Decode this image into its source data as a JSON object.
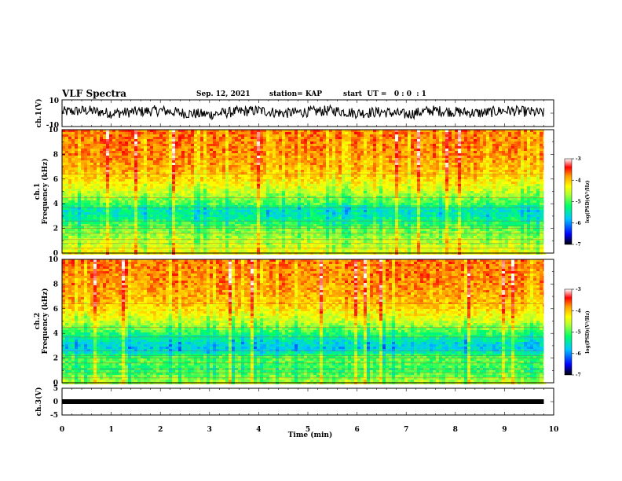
{
  "header": {
    "title": "VLF Spectra",
    "date": "Sep. 12, 2021",
    "station": "station= KAP",
    "start_ut": "start  UT =   0 : 0  : 1"
  },
  "colors": {
    "scale": [
      "#000000",
      "#0000ff",
      "#00c8ff",
      "#00ff66",
      "#aaff33",
      "#ffff00",
      "#ff9900",
      "#ff0000",
      "#ffffff"
    ]
  },
  "chart_data": [
    {
      "type": "line",
      "panel": "ch1-waveform",
      "ylabel": "ch.1(V)",
      "ylim": [
        -10,
        10
      ],
      "yticks": [
        "10",
        "-10"
      ],
      "xlim": [
        0,
        10
      ],
      "description_values": {
        "mean": 1,
        "amplitude": 4
      },
      "x": [
        0,
        0.5,
        1,
        1.5,
        2,
        2.5,
        3,
        3.5,
        4,
        4.5,
        5,
        5.5,
        6,
        6.5,
        7,
        7.5,
        8,
        8.5,
        9,
        9.5,
        9.8
      ],
      "values": [
        1,
        2,
        0,
        1,
        2,
        0,
        -1,
        1,
        2,
        0,
        1,
        2,
        0,
        1,
        -1,
        2,
        1,
        0,
        2,
        1,
        0
      ]
    },
    {
      "type": "heatmap",
      "panel": "ch1-spectrogram",
      "ylabel": "ch.1\nFrequency  (kHz)",
      "ylim": [
        0,
        10
      ],
      "yticks": [
        "0",
        "2",
        "4",
        "6",
        "8",
        "10"
      ],
      "xlim": [
        0,
        10
      ],
      "data_end_min": 9.8,
      "colorbar": {
        "label": "log(PSD)(V²/Hz)",
        "range": [
          -7,
          -3
        ],
        "ticks": [
          "-3",
          "-4",
          "-5",
          "-6",
          "-7"
        ]
      },
      "freq_profile_khz": [
        0,
        1,
        2,
        3,
        3.5,
        4,
        5,
        6,
        7,
        8,
        10
      ],
      "log_psd_profile": [
        -4.3,
        -4.6,
        -4.9,
        -5.4,
        -5.5,
        -5.0,
        -4.5,
        -4.1,
        -3.9,
        -3.8,
        -3.7
      ]
    },
    {
      "type": "heatmap",
      "panel": "ch2-spectrogram",
      "ylabel": "ch.2\nFrequency  (kHz)",
      "ylim": [
        0,
        10
      ],
      "yticks": [
        "0",
        "2",
        "4",
        "6",
        "8",
        "10"
      ],
      "xlim": [
        0,
        10
      ],
      "data_end_min": 9.8,
      "colorbar": {
        "label": "log(PSD)(V²/Hz)",
        "range": [
          -7,
          -3
        ],
        "ticks": [
          "-3",
          "-4",
          "-5",
          "-6",
          "-7"
        ]
      },
      "freq_profile_khz": [
        0,
        1,
        2,
        2.7,
        3.2,
        4,
        5,
        6,
        7,
        8,
        10
      ],
      "log_psd_profile": [
        -4.6,
        -5.1,
        -4.9,
        -5.7,
        -5.6,
        -5.1,
        -4.5,
        -4.1,
        -3.9,
        -3.8,
        -3.7
      ]
    },
    {
      "type": "line",
      "panel": "ch3-waveform",
      "ylabel": "ch.3(V)",
      "ylim": [
        -5,
        5
      ],
      "yticks": [
        "5",
        "0",
        "-5"
      ],
      "xlim": [
        0,
        10
      ],
      "x": [
        0,
        9.8
      ],
      "values": [
        0,
        0
      ]
    }
  ],
  "xaxis": {
    "label": "Time  (min)",
    "ticks": [
      "0",
      "1",
      "2",
      "3",
      "4",
      "5",
      "6",
      "7",
      "8",
      "9",
      "10"
    ]
  }
}
